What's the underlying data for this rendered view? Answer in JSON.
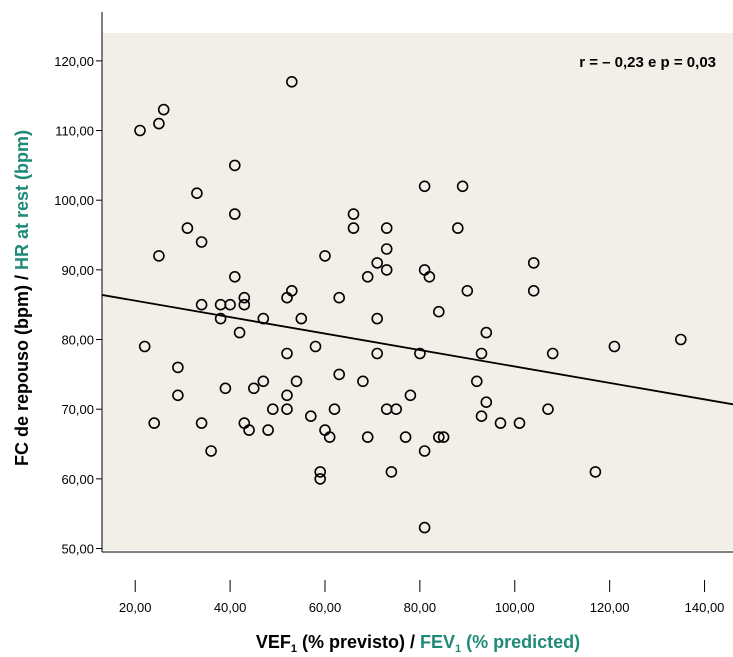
{
  "chart_data": {
    "type": "scatter",
    "annotation": "r = – 0,23 e p = 0,03",
    "xlabel": {
      "part1_main": "VEF",
      "part1_sub": "1",
      "part1_rest": " (% previsto) / ",
      "part2_main": "FEV",
      "part2_sub": "1",
      "part2_rest": " (% predicted)"
    },
    "ylabel": {
      "part1": "FC de repouso (bpm) / ",
      "part2": "HR at rest (bpm)"
    },
    "xlim": [
      13,
      146
    ],
    "ylim": [
      49.5,
      124
    ],
    "x_ticks": [
      20,
      40,
      60,
      80,
      100,
      120,
      140
    ],
    "x_tick_labels": [
      "20,00",
      "40,00",
      "60,00",
      "80,00",
      "100,00",
      "120,00",
      "140,00"
    ],
    "y_ticks": [
      50,
      60,
      70,
      80,
      90,
      100,
      110,
      120
    ],
    "y_tick_labels": [
      "50,00",
      "60,00",
      "70,00",
      "80,00",
      "90,00",
      "100,00",
      "110,00",
      "120,00"
    ],
    "fit_line": {
      "x": [
        13,
        146
      ],
      "y": [
        86.4,
        70.7
      ]
    },
    "points": [
      [
        21,
        110
      ],
      [
        25,
        111
      ],
      [
        26,
        113
      ],
      [
        53,
        117
      ],
      [
        25,
        92
      ],
      [
        31,
        96
      ],
      [
        33,
        101
      ],
      [
        34,
        94
      ],
      [
        41,
        105
      ],
      [
        41,
        98
      ],
      [
        41,
        89
      ],
      [
        34,
        85
      ],
      [
        38,
        85
      ],
      [
        38,
        83
      ],
      [
        40,
        85
      ],
      [
        43,
        86
      ],
      [
        43,
        85
      ],
      [
        42,
        81
      ],
      [
        47,
        83
      ],
      [
        22,
        79
      ],
      [
        29,
        76
      ],
      [
        29,
        72
      ],
      [
        24,
        68
      ],
      [
        34,
        68
      ],
      [
        36,
        64
      ],
      [
        39,
        73
      ],
      [
        43,
        68
      ],
      [
        44,
        67
      ],
      [
        45,
        73
      ],
      [
        47,
        74
      ],
      [
        48,
        67
      ],
      [
        49,
        70
      ],
      [
        52,
        70
      ],
      [
        52,
        72
      ],
      [
        53,
        87
      ],
      [
        52,
        86
      ],
      [
        52,
        78
      ],
      [
        54,
        74
      ],
      [
        55,
        83
      ],
      [
        57,
        69
      ],
      [
        58,
        79
      ],
      [
        59,
        61
      ],
      [
        59,
        60
      ],
      [
        60,
        67
      ],
      [
        60,
        92
      ],
      [
        61,
        66
      ],
      [
        62,
        70
      ],
      [
        63,
        86
      ],
      [
        63,
        75
      ],
      [
        66,
        98
      ],
      [
        66,
        96
      ],
      [
        68,
        74
      ],
      [
        69,
        89
      ],
      [
        69,
        66
      ],
      [
        71,
        91
      ],
      [
        71,
        83
      ],
      [
        71,
        78
      ],
      [
        73,
        96
      ],
      [
        73,
        93
      ],
      [
        73,
        90
      ],
      [
        73,
        70
      ],
      [
        74,
        61
      ],
      [
        75,
        70
      ],
      [
        77,
        66
      ],
      [
        78,
        72
      ],
      [
        80,
        78
      ],
      [
        81,
        102
      ],
      [
        81,
        90
      ],
      [
        82,
        89
      ],
      [
        81,
        64
      ],
      [
        81,
        53
      ],
      [
        84,
        84
      ],
      [
        84,
        66
      ],
      [
        85,
        66
      ],
      [
        88,
        96
      ],
      [
        89,
        102
      ],
      [
        90,
        87
      ],
      [
        92,
        74
      ],
      [
        93,
        78
      ],
      [
        93,
        69
      ],
      [
        94,
        81
      ],
      [
        94,
        71
      ],
      [
        97,
        68
      ],
      [
        101,
        68
      ],
      [
        104,
        91
      ],
      [
        104,
        87
      ],
      [
        107,
        70
      ],
      [
        108,
        78
      ],
      [
        117,
        61
      ],
      [
        121,
        79
      ],
      [
        135,
        80
      ]
    ]
  },
  "colors": {
    "plot_background": "#f2efe8",
    "axis_title_primary": "#000000",
    "axis_title_secondary": "#1f8a78",
    "marker": "#000000",
    "fit_line": "#000000"
  }
}
